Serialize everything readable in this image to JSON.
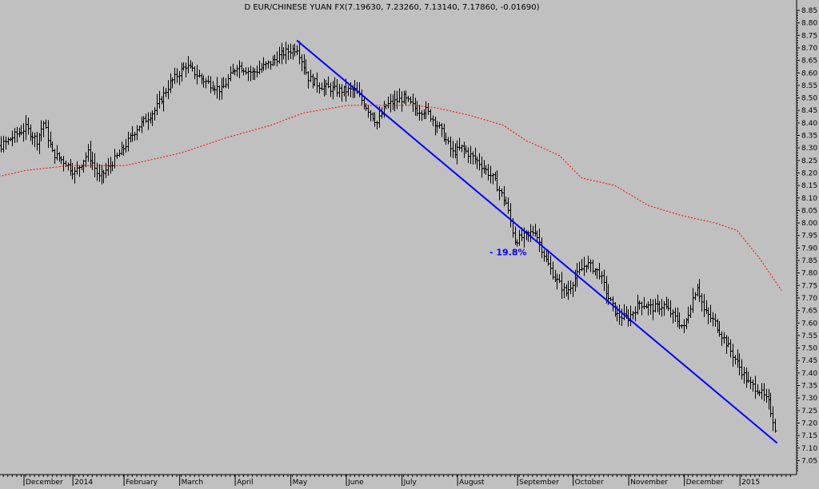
{
  "chart_data": {
    "type": "bar",
    "title": "D EUR/CHINESE YUAN FX(7.19630, 7.23260, 7.13140, 7.17860, -0.01690)",
    "ylim": [
      7.0,
      8.875
    ],
    "y_ticks": [
      "8.85",
      "8.80",
      "8.75",
      "8.70",
      "8.65",
      "8.60",
      "8.55",
      "8.50",
      "8.45",
      "8.40",
      "8.35",
      "8.30",
      "8.25",
      "8.20",
      "8.15",
      "8.10",
      "8.05",
      "8.00",
      "7.95",
      "7.90",
      "7.85",
      "7.80",
      "7.75",
      "7.70",
      "7.65",
      "7.60",
      "7.55",
      "7.50",
      "7.45",
      "7.40",
      "7.35",
      "7.30",
      "7.25",
      "7.20",
      "7.15",
      "7.10",
      "7.05"
    ],
    "x_ticks": [
      "er",
      "December",
      "2014",
      "February",
      "March",
      "April",
      "May",
      "June",
      "July",
      "August",
      "September",
      "October",
      "November",
      "December",
      "2015"
    ],
    "x_tick_day_index": [
      -23,
      0,
      22,
      45,
      70,
      95,
      120,
      145,
      170,
      195,
      222,
      247,
      272,
      297,
      322
    ],
    "annotation": "- 19.8%",
    "annotation_position": {
      "day_index": 217,
      "price": 7.87
    },
    "trendline": [
      {
        "day_index": 122,
        "price": 8.73
      },
      {
        "day_index": 338,
        "price": 7.12
      }
    ],
    "moving_average": [
      {
        "day_index": -25,
        "price": 8.18
      },
      {
        "day_index": -10,
        "price": 8.19
      },
      {
        "day_index": 0,
        "price": 8.21
      },
      {
        "day_index": 20,
        "price": 8.23
      },
      {
        "day_index": 45,
        "price": 8.23
      },
      {
        "day_index": 70,
        "price": 8.28
      },
      {
        "day_index": 90,
        "price": 8.34
      },
      {
        "day_index": 110,
        "price": 8.39
      },
      {
        "day_index": 125,
        "price": 8.44
      },
      {
        "day_index": 145,
        "price": 8.47
      },
      {
        "day_index": 160,
        "price": 8.47
      },
      {
        "day_index": 175,
        "price": 8.47
      },
      {
        "day_index": 185,
        "price": 8.46
      },
      {
        "day_index": 200,
        "price": 8.43
      },
      {
        "day_index": 215,
        "price": 8.39
      },
      {
        "day_index": 225,
        "price": 8.33
      },
      {
        "day_index": 240,
        "price": 8.27
      },
      {
        "day_index": 250,
        "price": 8.18
      },
      {
        "day_index": 265,
        "price": 8.15
      },
      {
        "day_index": 280,
        "price": 8.07
      },
      {
        "day_index": 295,
        "price": 8.03
      },
      {
        "day_index": 310,
        "price": 8.0
      },
      {
        "day_index": 320,
        "price": 7.97
      },
      {
        "day_index": 330,
        "price": 7.86
      },
      {
        "day_index": 340,
        "price": 7.73
      }
    ],
    "price_path": [
      {
        "day_index": -25,
        "price": 8.22
      },
      {
        "day_index": -15,
        "price": 8.28
      },
      {
        "day_index": -5,
        "price": 8.35
      },
      {
        "day_index": 0,
        "price": 8.38
      },
      {
        "day_index": 5,
        "price": 8.33
      },
      {
        "day_index": 8,
        "price": 8.4
      },
      {
        "day_index": 12,
        "price": 8.28
      },
      {
        "day_index": 18,
        "price": 8.24
      },
      {
        "day_index": 22,
        "price": 8.2
      },
      {
        "day_index": 28,
        "price": 8.28
      },
      {
        "day_index": 33,
        "price": 8.18
      },
      {
        "day_index": 38,
        "price": 8.23
      },
      {
        "day_index": 44,
        "price": 8.3
      },
      {
        "day_index": 50,
        "price": 8.38
      },
      {
        "day_index": 58,
        "price": 8.45
      },
      {
        "day_index": 65,
        "price": 8.56
      },
      {
        "day_index": 72,
        "price": 8.63
      },
      {
        "day_index": 80,
        "price": 8.57
      },
      {
        "day_index": 88,
        "price": 8.53
      },
      {
        "day_index": 95,
        "price": 8.63
      },
      {
        "day_index": 102,
        "price": 8.6
      },
      {
        "day_index": 110,
        "price": 8.64
      },
      {
        "day_index": 116,
        "price": 8.68
      },
      {
        "day_index": 122,
        "price": 8.7
      },
      {
        "day_index": 127,
        "price": 8.58
      },
      {
        "day_index": 132,
        "price": 8.55
      },
      {
        "day_index": 140,
        "price": 8.53
      },
      {
        "day_index": 148,
        "price": 8.53
      },
      {
        "day_index": 155,
        "price": 8.44
      },
      {
        "day_index": 158,
        "price": 8.4
      },
      {
        "day_index": 162,
        "price": 8.47
      },
      {
        "day_index": 170,
        "price": 8.5
      },
      {
        "day_index": 176,
        "price": 8.45
      },
      {
        "day_index": 180,
        "price": 8.45
      },
      {
        "day_index": 186,
        "price": 8.38
      },
      {
        "day_index": 192,
        "price": 8.28
      },
      {
        "day_index": 196,
        "price": 8.3
      },
      {
        "day_index": 204,
        "price": 8.24
      },
      {
        "day_index": 210,
        "price": 8.18
      },
      {
        "day_index": 216,
        "price": 8.08
      },
      {
        "day_index": 220,
        "price": 7.93
      },
      {
        "day_index": 225,
        "price": 7.95
      },
      {
        "day_index": 229,
        "price": 7.97
      },
      {
        "day_index": 234,
        "price": 7.85
      },
      {
        "day_index": 238,
        "price": 7.78
      },
      {
        "day_index": 243,
        "price": 7.72
      },
      {
        "day_index": 247,
        "price": 7.78
      },
      {
        "day_index": 252,
        "price": 7.84
      },
      {
        "day_index": 258,
        "price": 7.8
      },
      {
        "day_index": 262,
        "price": 7.7
      },
      {
        "day_index": 266,
        "price": 7.63
      },
      {
        "day_index": 271,
        "price": 7.62
      },
      {
        "day_index": 276,
        "price": 7.68
      },
      {
        "day_index": 282,
        "price": 7.66
      },
      {
        "day_index": 287,
        "price": 7.67
      },
      {
        "day_index": 292,
        "price": 7.62
      },
      {
        "day_index": 296,
        "price": 7.58
      },
      {
        "day_index": 300,
        "price": 7.7
      },
      {
        "day_index": 302,
        "price": 7.75
      },
      {
        "day_index": 305,
        "price": 7.65
      },
      {
        "day_index": 310,
        "price": 7.6
      },
      {
        "day_index": 315,
        "price": 7.52
      },
      {
        "day_index": 320,
        "price": 7.44
      },
      {
        "day_index": 325,
        "price": 7.36
      },
      {
        "day_index": 330,
        "price": 7.33
      },
      {
        "day_index": 334,
        "price": 7.28
      },
      {
        "day_index": 337,
        "price": 7.18
      }
    ],
    "colors": {
      "background": "#c0c0c0",
      "bars": "#000000",
      "trendline": "#0000ff",
      "moving_average": "#ff0000",
      "annotation": "#0000ff"
    }
  }
}
